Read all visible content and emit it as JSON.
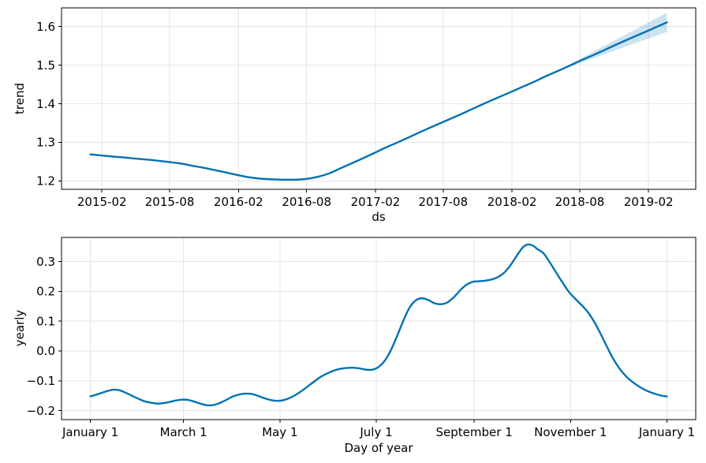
{
  "figure": {
    "background": "#ffffff",
    "line_color": "#0072B2",
    "band_color": "#0072B2",
    "band_opacity": 0.2,
    "grid_color": "#e5e5e5",
    "spine_color": "#000000",
    "text_color": "#000000"
  },
  "chart_data": [
    {
      "type": "line",
      "name": "trend",
      "title": "",
      "xlabel": "ds",
      "ylabel": "trend",
      "grid": true,
      "legend": "none",
      "x_is_date": true,
      "xlim": [
        "2014-10-16",
        "2019-06-07"
      ],
      "ylim": [
        1.1785,
        1.6485
      ],
      "x_tick_dates": [
        "2015-02-01",
        "2015-08-01",
        "2016-02-01",
        "2016-08-01",
        "2017-02-01",
        "2017-08-01",
        "2018-02-01",
        "2018-08-01",
        "2019-02-01"
      ],
      "x_tick_labels": [
        "2015-02",
        "2015-08",
        "2016-02",
        "2016-08",
        "2017-02",
        "2017-08",
        "2018-02",
        "2018-08",
        "2019-02"
      ],
      "y_tick_values": [
        1.2,
        1.3,
        1.4,
        1.5,
        1.6
      ],
      "y_tick_labels": [
        "1.2",
        "1.3",
        "1.4",
        "1.5",
        "1.6"
      ],
      "line_color": "#0072B2",
      "series": [
        {
          "name": "trend",
          "x": [
            "2015-01-01",
            "2015-02-01",
            "2015-03-01",
            "2015-04-01",
            "2015-05-01",
            "2015-06-01",
            "2015-07-01",
            "2015-08-01",
            "2015-09-01",
            "2015-10-01",
            "2015-11-01",
            "2015-12-01",
            "2016-01-01",
            "2016-02-01",
            "2016-03-01",
            "2016-04-01",
            "2016-05-01",
            "2016-06-01",
            "2016-07-01",
            "2016-08-01",
            "2016-09-01",
            "2016-10-01",
            "2016-11-01",
            "2016-12-01",
            "2017-01-01",
            "2017-02-01",
            "2017-03-01",
            "2017-04-01",
            "2017-05-01",
            "2017-06-01",
            "2017-07-01",
            "2017-08-01",
            "2017-09-01",
            "2017-10-01",
            "2017-11-01",
            "2017-12-01",
            "2018-01-01",
            "2018-02-01",
            "2018-03-01",
            "2018-04-01",
            "2018-05-01",
            "2018-06-01",
            "2018-07-01",
            "2018-08-01",
            "2018-09-01",
            "2018-10-01",
            "2018-11-01",
            "2018-12-01",
            "2019-01-01",
            "2019-02-01",
            "2019-03-01",
            "2019-03-22"
          ],
          "y": [
            1.269,
            1.266,
            1.2635,
            1.261,
            1.258,
            1.2555,
            1.2525,
            1.249,
            1.245,
            1.2395,
            1.234,
            1.228,
            1.2215,
            1.215,
            1.2095,
            1.206,
            1.2045,
            1.2035,
            1.2035,
            1.2055,
            1.211,
            1.22,
            1.2335,
            1.2465,
            1.26,
            1.274,
            1.287,
            1.3,
            1.313,
            1.327,
            1.34,
            1.353,
            1.366,
            1.379,
            1.393,
            1.406,
            1.419,
            1.432,
            1.444,
            1.457,
            1.471,
            1.484,
            1.497,
            1.511,
            1.524,
            1.537,
            1.551,
            1.564,
            1.577,
            1.59,
            1.602,
            1.611
          ]
        }
      ],
      "band": {
        "x": [
          "2018-05-20",
          "2018-06-01",
          "2018-07-01",
          "2018-08-01",
          "2018-09-01",
          "2018-10-01",
          "2018-11-01",
          "2018-12-01",
          "2019-01-01",
          "2019-02-01",
          "2019-03-01",
          "2019-03-22"
        ],
        "upper": [
          1.479,
          1.485,
          1.5,
          1.5165,
          1.532,
          1.5475,
          1.564,
          1.5795,
          1.595,
          1.611,
          1.6255,
          1.636
        ],
        "lower": [
          1.479,
          1.483,
          1.494,
          1.5055,
          1.516,
          1.5265,
          1.538,
          1.5485,
          1.559,
          1.569,
          1.5785,
          1.586
        ]
      }
    },
    {
      "type": "line",
      "name": "yearly",
      "title": "",
      "xlabel": "Day of year",
      "ylabel": "yearly",
      "grid": true,
      "legend": "none",
      "x_is_date": false,
      "xlim": [
        -17.25,
        384.25
      ],
      "ylim": [
        -0.23,
        0.381
      ],
      "x_tick_values": [
        1,
        60,
        121,
        182,
        244,
        305,
        366
      ],
      "x_tick_labels": [
        "January 1",
        "March 1",
        "May 1",
        "July 1",
        "September 1",
        "November 1",
        "January 1"
      ],
      "y_tick_values": [
        -0.2,
        -0.1,
        0.0,
        0.1,
        0.2,
        0.3
      ],
      "y_tick_labels": [
        "−0.2",
        "−0.1",
        "0.0",
        "0.1",
        "0.2",
        "0.3"
      ],
      "line_color": "#0072B2",
      "series": [
        {
          "name": "yearly",
          "x": [
            1,
            5,
            10,
            15,
            19,
            23,
            27,
            31,
            35,
            39,
            43,
            47,
            51,
            55,
            59,
            63,
            67,
            71,
            75,
            79,
            83,
            87,
            91,
            95,
            99,
            103,
            107,
            111,
            115,
            119,
            123,
            127,
            131,
            135,
            139,
            143,
            147,
            151,
            155,
            159,
            163,
            167,
            171,
            175,
            179,
            183,
            187,
            191,
            195,
            199,
            203,
            207,
            211,
            215,
            219,
            223,
            227,
            231,
            235,
            239,
            243,
            247,
            251,
            255,
            259,
            263,
            267,
            271,
            275,
            278,
            281,
            284,
            288,
            292,
            296,
            300,
            304,
            308,
            312,
            316,
            320,
            324,
            328,
            332,
            336,
            340,
            344,
            348,
            352,
            356,
            360,
            363,
            366
          ],
          "y": [
            -0.152,
            -0.146,
            -0.137,
            -0.13,
            -0.131,
            -0.139,
            -0.149,
            -0.159,
            -0.168,
            -0.173,
            -0.176,
            -0.175,
            -0.171,
            -0.166,
            -0.163,
            -0.164,
            -0.17,
            -0.177,
            -0.182,
            -0.181,
            -0.174,
            -0.164,
            -0.153,
            -0.146,
            -0.143,
            -0.144,
            -0.15,
            -0.158,
            -0.164,
            -0.167,
            -0.165,
            -0.158,
            -0.147,
            -0.133,
            -0.117,
            -0.101,
            -0.086,
            -0.075,
            -0.066,
            -0.06,
            -0.057,
            -0.056,
            -0.058,
            -0.062,
            -0.063,
            -0.055,
            -0.035,
            0.0,
            0.048,
            0.1,
            0.145,
            0.17,
            0.177,
            0.171,
            0.16,
            0.157,
            0.163,
            0.18,
            0.203,
            0.222,
            0.232,
            0.234,
            0.236,
            0.24,
            0.248,
            0.263,
            0.288,
            0.32,
            0.349,
            0.357,
            0.354,
            0.342,
            0.327,
            0.296,
            0.262,
            0.229,
            0.198,
            0.175,
            0.154,
            0.13,
            0.098,
            0.058,
            0.015,
            -0.026,
            -0.059,
            -0.084,
            -0.103,
            -0.118,
            -0.13,
            -0.139,
            -0.146,
            -0.15,
            -0.152
          ]
        }
      ]
    }
  ]
}
